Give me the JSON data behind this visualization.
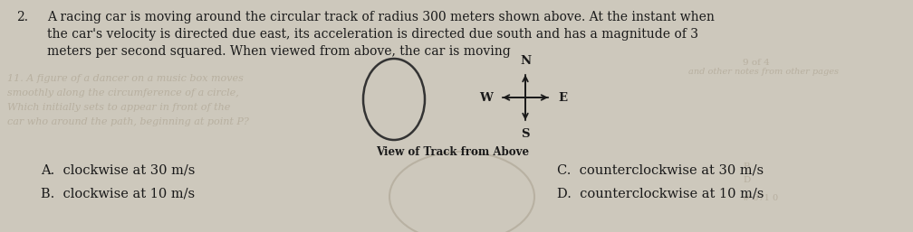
{
  "background_color": "#cdc8bc",
  "question_number": "2.",
  "question_text_line1": "A racing car is moving around the circular track of radius 300 meters shown above. At the instant when",
  "question_text_line2": "the car's velocity is directed due east, its acceleration is directed due south and has a magnitude of 3",
  "question_text_line3": "meters per second squared. When viewed from above, the car is moving",
  "compass_label": "View of Track from Above",
  "compass_N": "N",
  "compass_S": "S",
  "compass_E": "E",
  "compass_W": "W",
  "answer_A": "A.  clockwise at 30 m/s",
  "answer_B": "B.  clockwise at 10 m/s",
  "answer_C": "C.  counterclockwise at 30 m/s",
  "answer_D": "D.  counterclockwise at 10 m/s",
  "faded_lines": [
    "11. A figure of a dancer on a music box moves",
    "smoothly along the circumference of a circle,",
    "Which initially sets to appear in front of the",
    "car who around the path, beginning at point P?"
  ],
  "text_color": "#1a1a1a",
  "faded_text_color": "#b8b0a0",
  "title_fontsize": 10.0,
  "answer_fontsize": 10.5,
  "compass_fontsize": 9.5,
  "caption_fontsize": 8.5
}
